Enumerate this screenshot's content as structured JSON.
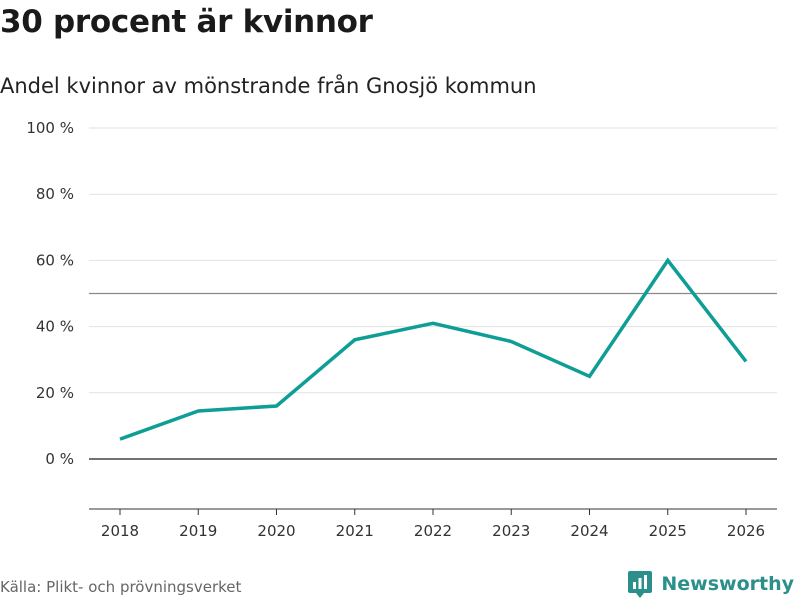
{
  "title": "30 procent är kvinnor",
  "subtitle": "Andel kvinnor av mönstrande från Gnosjö kommun",
  "source": "Källa: Plikt- och prövningsverket",
  "brand": {
    "name": "Newsworthy",
    "icon": "newsworthy-logo-icon",
    "color": "#2b8f8a"
  },
  "colors": {
    "line": "#0e9e96",
    "grid": "#e2e2e2",
    "reference": "#888888",
    "zero": "#444444"
  },
  "chart_data": {
    "type": "line",
    "title": "30 procent är kvinnor",
    "subtitle": "Andel kvinnor av mönstrande från Gnosjö kommun",
    "xlabel": "",
    "ylabel": "",
    "categories": [
      "2018",
      "2019",
      "2020",
      "2021",
      "2022",
      "2023",
      "2024",
      "2025",
      "2026"
    ],
    "series": [
      {
        "name": "Andel kvinnor",
        "values": [
          6,
          14.5,
          16,
          36,
          41,
          35.5,
          25,
          60,
          29.5
        ]
      }
    ],
    "ylim": [
      -15,
      100
    ],
    "yticks": [
      0,
      20,
      40,
      60,
      80,
      100
    ],
    "ytick_labels": [
      "0 %",
      "20 %",
      "40 %",
      "60 %",
      "80 %",
      "100 %"
    ],
    "reference_line": 50,
    "grid": true
  }
}
